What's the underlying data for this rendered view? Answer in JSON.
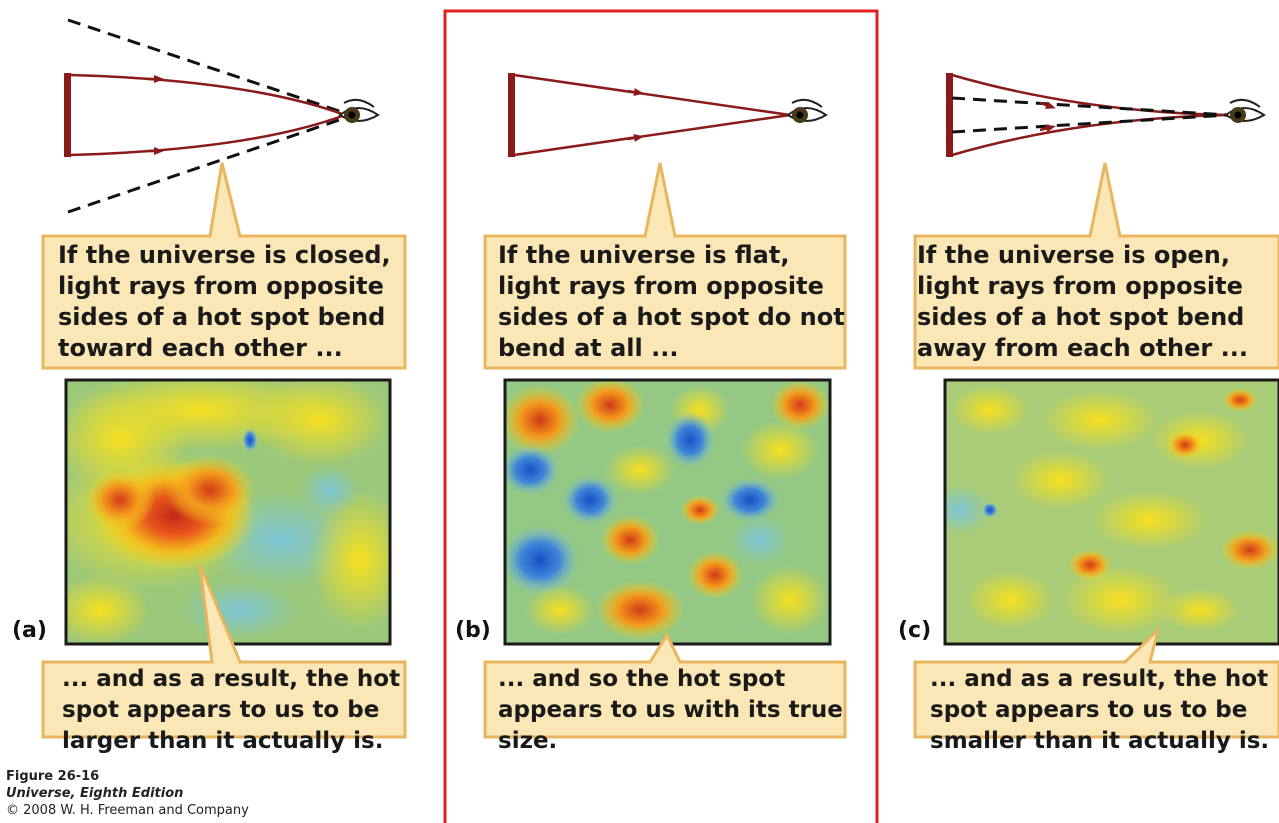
{
  "panels": [
    {
      "label": "(a)",
      "top_text": "If the universe is closed,\nlight rays from opposite\nsides of a hot spot bend\ntoward each other ...",
      "bottom_text": "... and as a result, the hot\nspot appears to us to be\nlarger than it actually is."
    },
    {
      "label": "(b)",
      "top_text": "If the universe is flat,\nlight rays from opposite\nsides of a hot spot do not\nbend at all ...",
      "bottom_text": "... and so the hot spot\nappears to us with its true\nsize."
    },
    {
      "label": "(c)",
      "top_text": "If the universe is open,\nlight rays from opposite\nsides of a hot spot bend\naway from each other ...",
      "bottom_text": "... and as a result, the hot\nspot appears to us to be\nsmaller than it actually is."
    }
  ],
  "caption": {
    "figure": "Figure 26-16",
    "book": "Universe, Eighth Edition",
    "copyright": "© 2008 W. H. Freeman and Company"
  },
  "colors": {
    "callout_fill": "#fbe6b6",
    "callout_border": "#e8b65e",
    "ray": "#8b1a1a",
    "highlight_frame": "#e02020"
  }
}
